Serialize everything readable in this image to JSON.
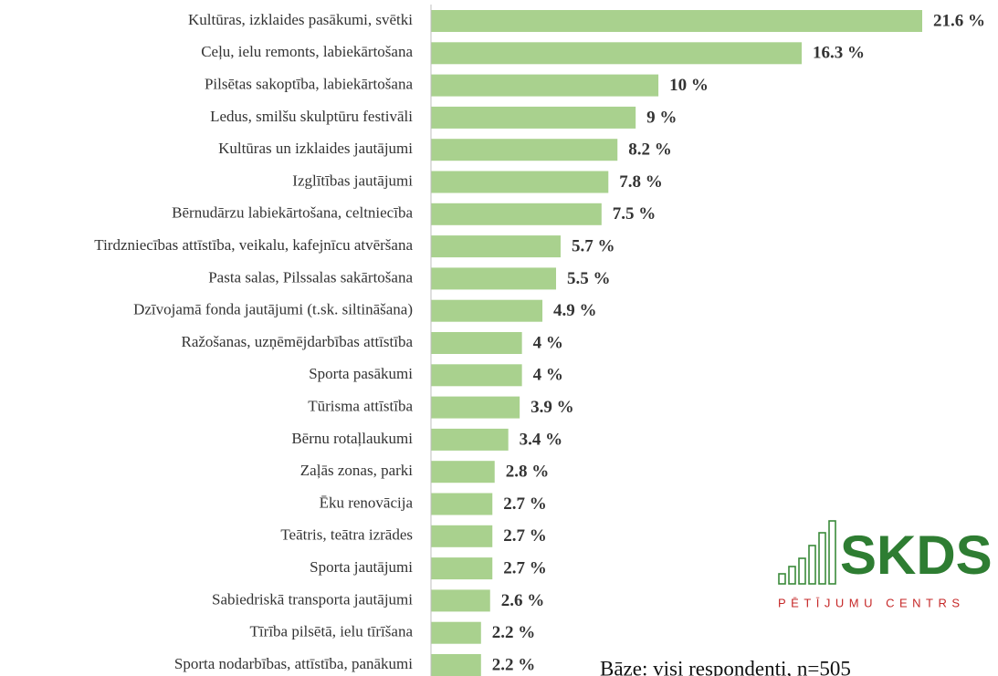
{
  "chart_data": {
    "type": "bar",
    "orientation": "horizontal",
    "categories": [
      "Kultūras, izklaides pasākumi, svētki",
      "Ceļu, ielu remonts, labiekārtošana",
      "Pilsētas sakoptība, labiekārtošana",
      "Ledus, smilšu skulptūru festivāli",
      "Kultūras un izklaides jautājumi",
      "Izglītības jautājumi",
      "Bērnudārzu labiekārtošana, celtniecība",
      "Tirdzniecības attīstība, veikalu, kafejnīcu atvēršana",
      "Pasta salas, Pilssalas sakārtošana",
      "Dzīvojamā fonda jautājumi (t.sk. siltināšana)",
      "Ražošanas, uzņēmējdarbības attīstība",
      "Sporta pasākumi",
      "Tūrisma attīstība",
      "Bērnu rotaļlaukumi",
      "Zaļās zonas, parki",
      "Ēku renovācija",
      "Teātris, teātra izrādes",
      "Sporta jautājumi",
      "Sabiedriskā transporta jautājumi",
      "Tīrība pilsētā, ielu tīrīšana",
      "Sporta nodarbības, attīstība, panākumi"
    ],
    "values": [
      21.6,
      16.3,
      10,
      9,
      8.2,
      7.8,
      7.5,
      5.7,
      5.5,
      4.9,
      4,
      4,
      3.9,
      3.4,
      2.8,
      2.7,
      2.7,
      2.7,
      2.6,
      2.2,
      2.2
    ],
    "value_labels": [
      "21.6 %",
      "16.3 %",
      "10 %",
      "9 %",
      "8.2 %",
      "7.8 %",
      "7.5 %",
      "5.7 %",
      "5.5 %",
      "4.9 %",
      "4 %",
      "4 %",
      "3.9 %",
      "3.4 %",
      "2.8 %",
      "2.7 %",
      "2.7 %",
      "2.7 %",
      "2.6 %",
      "2.2 %",
      "2.2 %"
    ],
    "color": "#a9d18e",
    "note": "Bāze: visi respondenti, n=505"
  },
  "logo": {
    "name": "SKDS",
    "subtitle": "PĒTĪJUMU CENTRS"
  }
}
